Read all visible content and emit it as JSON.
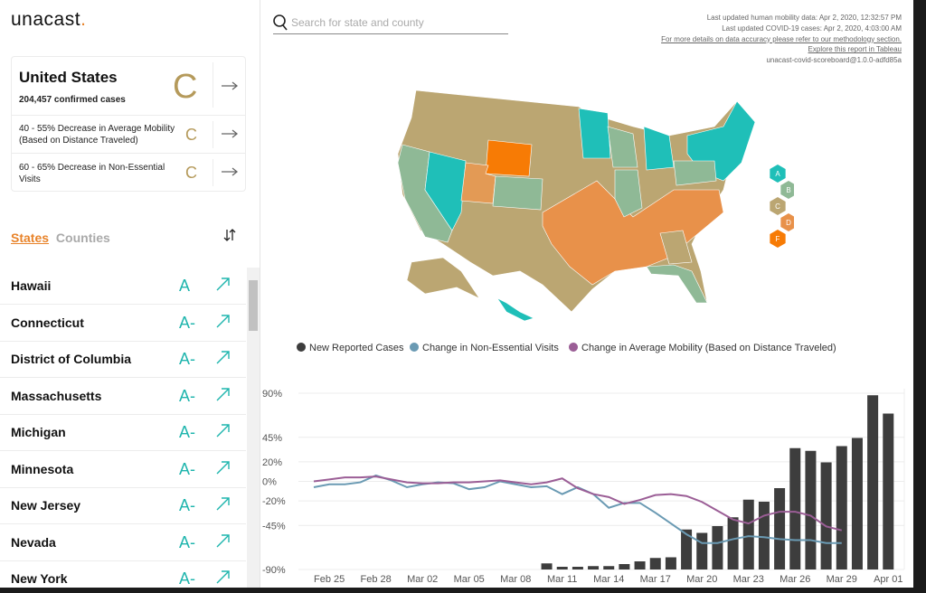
{
  "header": {
    "logo": "unacast",
    "logo_dot": ".",
    "search_placeholder": "Search for state and county",
    "info": [
      "Last updated human mobility data: Apr 2, 2020, 12:32:57 PM",
      "Last updated COVID-19 cases: Apr 2, 2020, 4:03:00 AM",
      "For more details on data accuracy please refer to our methodology section.",
      "Explore this report in Tableau",
      "unacast-covid-scoreboard@1.0.0-adfd85a"
    ]
  },
  "summary": {
    "title": "United States",
    "cases": "204,457 confirmed cases",
    "grade": "C",
    "metrics": [
      {
        "label": "40 - 55% Decrease in Average Mobility (Based on Distance Traveled)",
        "grade": "C"
      },
      {
        "label": "60 - 65% Decrease in Non-Essential Visits",
        "grade": "C"
      }
    ]
  },
  "tabs": [
    "States",
    "Counties"
  ],
  "states": [
    {
      "name": "Hawaii",
      "grade": "A"
    },
    {
      "name": "Connecticut",
      "grade": "A-"
    },
    {
      "name": "District of Columbia",
      "grade": "A-"
    },
    {
      "name": "Massachusetts",
      "grade": "A-"
    },
    {
      "name": "Michigan",
      "grade": "A-"
    },
    {
      "name": "Minnesota",
      "grade": "A-"
    },
    {
      "name": "New Jersey",
      "grade": "A-"
    },
    {
      "name": "Nevada",
      "grade": "A-"
    },
    {
      "name": "New York",
      "grade": "A-"
    }
  ],
  "map_legend": [
    {
      "grade": "A",
      "color": "#1fbfb8"
    },
    {
      "grade": "B",
      "color": "#8fb996"
    },
    {
      "grade": "C",
      "color": "#bba672"
    },
    {
      "grade": "D",
      "color": "#e8914a"
    },
    {
      "grade": "F",
      "color": "#f77b05"
    }
  ],
  "chart_data": {
    "type": "combo",
    "categories": [
      null,
      "Feb 25",
      null,
      null,
      "Feb 28",
      null,
      null,
      "Mar 02",
      null,
      null,
      "Mar 05",
      null,
      null,
      "Mar 08",
      null,
      null,
      "Mar 11",
      null,
      null,
      "Mar 14",
      null,
      null,
      "Mar 17",
      null,
      null,
      "Mar 20",
      null,
      null,
      "Mar 23",
      null,
      null,
      "Mar 26",
      null,
      null,
      "Mar 29",
      null,
      null,
      "Apr 01"
    ],
    "series": [
      {
        "name": "New Reported Cases",
        "type": "bar",
        "axis": "y2",
        "color": "#3d3d3d",
        "values": [
          null,
          null,
          null,
          null,
          null,
          null,
          null,
          null,
          null,
          null,
          null,
          null,
          null,
          null,
          null,
          900,
          400,
          400,
          500,
          500,
          800,
          1200,
          1700,
          1800,
          5900,
          5400,
          6400,
          7700,
          10300,
          10000,
          12000,
          17900,
          17500,
          15800,
          18200,
          19400,
          25700,
          23000
        ]
      },
      {
        "name": "Change in Non-Essential Visits",
        "type": "line",
        "color": "#6a9ab3",
        "values": [
          -6,
          -3,
          -3,
          -1,
          6,
          1,
          -6,
          -3,
          -1,
          -2,
          -8,
          -6,
          0,
          -3,
          -6,
          -5,
          -13,
          -6,
          -13,
          -27,
          -22,
          -22,
          -32,
          -43,
          -54,
          -63,
          -63,
          -59,
          -56,
          -57,
          -59,
          -60,
          -60,
          -63,
          -63,
          null,
          null,
          null
        ]
      },
      {
        "name": "Change in Average Mobility (Based on Distance Traveled)",
        "type": "line",
        "color": "#9b5e96",
        "values": [
          0,
          2,
          4,
          4,
          5,
          2,
          -1,
          -2,
          -2,
          -1,
          -1,
          0,
          1,
          -1,
          -3,
          -1,
          3,
          -7,
          -13,
          -16,
          -23,
          -19,
          -14,
          -13,
          -15,
          -21,
          -30,
          -39,
          -43,
          -35,
          -31,
          -31,
          -35,
          -46,
          -50,
          null,
          null,
          null
        ]
      }
    ],
    "ylim": [
      -90,
      90
    ],
    "yticks": [
      {
        "value": -90,
        "label": "-90%"
      },
      {
        "value": -45,
        "label": "-45%"
      },
      {
        "value": -20,
        "label": "-20%"
      },
      {
        "value": 0,
        "label": "0%"
      },
      {
        "value": 20,
        "label": "20%"
      },
      {
        "value": 45,
        "label": "45%"
      },
      {
        "value": 90,
        "label": "90%"
      }
    ],
    "y2lim": [
      0,
      26000
    ],
    "grid": true,
    "legend": "top"
  }
}
